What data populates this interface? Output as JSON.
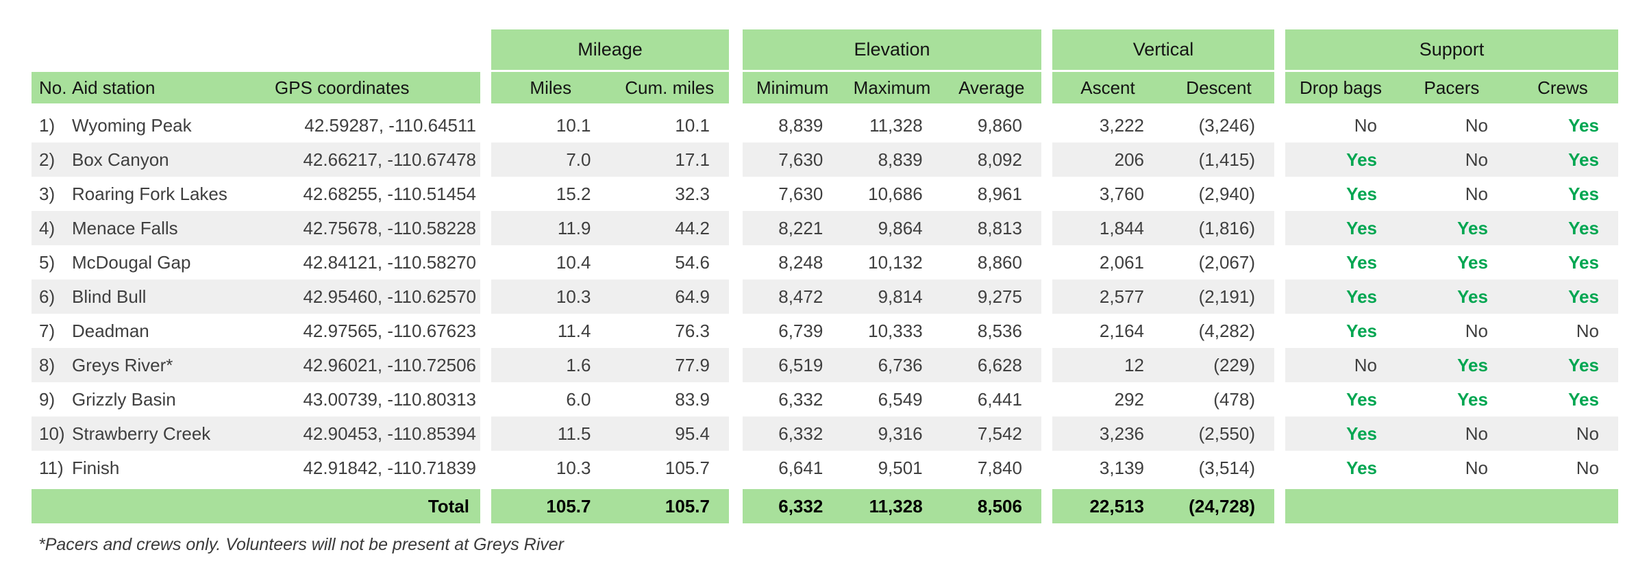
{
  "table": {
    "groups": [
      {
        "label": "Mileage"
      },
      {
        "label": "Elevation"
      },
      {
        "label": "Vertical"
      },
      {
        "label": "Support"
      }
    ],
    "columns": {
      "no": "No.",
      "station": "Aid station",
      "gps": "GPS coordinates",
      "miles": "Miles",
      "cum_miles": "Cum. miles",
      "minimum": "Minimum",
      "maximum": "Maximum",
      "average": "Average",
      "ascent": "Ascent",
      "descent": "Descent",
      "drop_bags": "Drop bags",
      "pacers": "Pacers",
      "crews": "Crews"
    },
    "rows": [
      {
        "no": "1)",
        "station": "Wyoming Peak",
        "gps": "42.59287, -110.64511",
        "miles": "10.1",
        "cum": "10.1",
        "min": "8,839",
        "max": "11,328",
        "avg": "9,860",
        "ascent": "3,222",
        "descent": "(3,246)",
        "drop_bags": "No",
        "pacers": "No",
        "crews": "Yes"
      },
      {
        "no": "2)",
        "station": "Box Canyon",
        "gps": "42.66217, -110.67478",
        "miles": "7.0",
        "cum": "17.1",
        "min": "7,630",
        "max": "8,839",
        "avg": "8,092",
        "ascent": "206",
        "descent": "(1,415)",
        "drop_bags": "Yes",
        "pacers": "No",
        "crews": "Yes"
      },
      {
        "no": "3)",
        "station": "Roaring Fork Lakes",
        "gps": "42.68255, -110.51454",
        "miles": "15.2",
        "cum": "32.3",
        "min": "7,630",
        "max": "10,686",
        "avg": "8,961",
        "ascent": "3,760",
        "descent": "(2,940)",
        "drop_bags": "Yes",
        "pacers": "No",
        "crews": "Yes"
      },
      {
        "no": "4)",
        "station": "Menace Falls",
        "gps": "42.75678, -110.58228",
        "miles": "11.9",
        "cum": "44.2",
        "min": "8,221",
        "max": "9,864",
        "avg": "8,813",
        "ascent": "1,844",
        "descent": "(1,816)",
        "drop_bags": "Yes",
        "pacers": "Yes",
        "crews": "Yes"
      },
      {
        "no": "5)",
        "station": "McDougal Gap",
        "gps": "42.84121, -110.58270",
        "miles": "10.4",
        "cum": "54.6",
        "min": "8,248",
        "max": "10,132",
        "avg": "8,860",
        "ascent": "2,061",
        "descent": "(2,067)",
        "drop_bags": "Yes",
        "pacers": "Yes",
        "crews": "Yes"
      },
      {
        "no": "6)",
        "station": "Blind Bull",
        "gps": "42.95460, -110.62570",
        "miles": "10.3",
        "cum": "64.9",
        "min": "8,472",
        "max": "9,814",
        "avg": "9,275",
        "ascent": "2,577",
        "descent": "(2,191)",
        "drop_bags": "Yes",
        "pacers": "Yes",
        "crews": "Yes"
      },
      {
        "no": "7)",
        "station": "Deadman",
        "gps": "42.97565, -110.67623",
        "miles": "11.4",
        "cum": "76.3",
        "min": "6,739",
        "max": "10,333",
        "avg": "8,536",
        "ascent": "2,164",
        "descent": "(4,282)",
        "drop_bags": "Yes",
        "pacers": "No",
        "crews": "No"
      },
      {
        "no": "8)",
        "station": "Greys River*",
        "gps": "42.96021, -110.72506",
        "miles": "1.6",
        "cum": "77.9",
        "min": "6,519",
        "max": "6,736",
        "avg": "6,628",
        "ascent": "12",
        "descent": "(229)",
        "drop_bags": "No",
        "pacers": "Yes",
        "crews": "Yes"
      },
      {
        "no": "9)",
        "station": "Grizzly Basin",
        "gps": "43.00739, -110.80313",
        "miles": "6.0",
        "cum": "83.9",
        "min": "6,332",
        "max": "6,549",
        "avg": "6,441",
        "ascent": "292",
        "descent": "(478)",
        "drop_bags": "Yes",
        "pacers": "Yes",
        "crews": "Yes"
      },
      {
        "no": "10)",
        "station": "Strawberry Creek",
        "gps": "42.90453, -110.85394",
        "miles": "11.5",
        "cum": "95.4",
        "min": "6,332",
        "max": "9,316",
        "avg": "7,542",
        "ascent": "3,236",
        "descent": "(2,550)",
        "drop_bags": "Yes",
        "pacers": "No",
        "crews": "No"
      },
      {
        "no": "11)",
        "station": "Finish",
        "gps": "42.91842, -110.71839",
        "miles": "10.3",
        "cum": "105.7",
        "min": "6,641",
        "max": "9,501",
        "avg": "7,840",
        "ascent": "3,139",
        "descent": "(3,514)",
        "drop_bags": "Yes",
        "pacers": "No",
        "crews": "No"
      }
    ],
    "total": {
      "label": "Total",
      "miles": "105.7",
      "cum": "105.7",
      "min": "6,332",
      "max": "11,328",
      "avg": "8,506",
      "ascent": "22,513",
      "descent": "(24,728)"
    }
  },
  "footnote": "*Pacers and crews only. Volunteers will not be present at Greys River",
  "colors": {
    "header_green": "#a8e09b",
    "yes_green": "#00a651",
    "stripe_gray": "#efefef"
  }
}
